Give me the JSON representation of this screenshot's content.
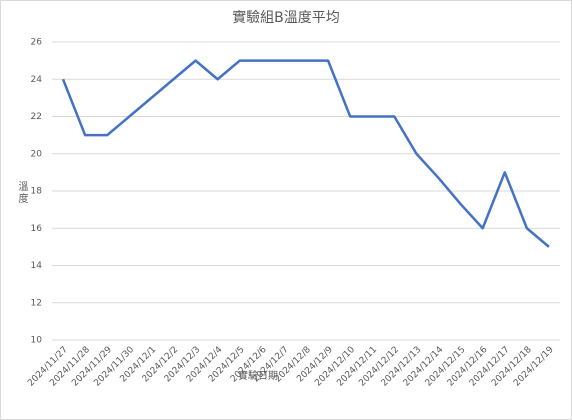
{
  "chart_data": {
    "type": "line",
    "title": "實驗組B溫度平均",
    "x_label": "實驗日期",
    "y_label": "溫度",
    "categories": [
      "2024/11/27",
      "2024/11/28",
      "2024/11/29",
      "2024/11/30",
      "2024/12/1",
      "2024/12/2",
      "2024/12/3",
      "2024/12/4",
      "2024/12/5",
      "2024/12/6",
      "2024/12/7",
      "2024/12/8",
      "2024/12/9",
      "2024/12/10",
      "2024/12/11",
      "2024/12/12",
      "2024/12/13",
      "2024/12/14",
      "2024/12/15",
      "2024/12/16",
      "2024/12/17",
      "2024/12/18",
      "2024/12/19"
    ],
    "values": [
      24,
      21,
      21,
      22,
      23,
      24,
      25,
      24,
      25,
      25,
      25,
      25,
      25,
      22,
      22,
      22,
      20,
      18.7,
      17.3,
      16,
      19,
      16,
      15
    ],
    "color": "#4472c4",
    "ylim": [
      10,
      26
    ],
    "yticks": [
      10,
      12,
      14,
      16,
      18,
      20,
      22,
      24,
      26
    ],
    "grid": true
  }
}
